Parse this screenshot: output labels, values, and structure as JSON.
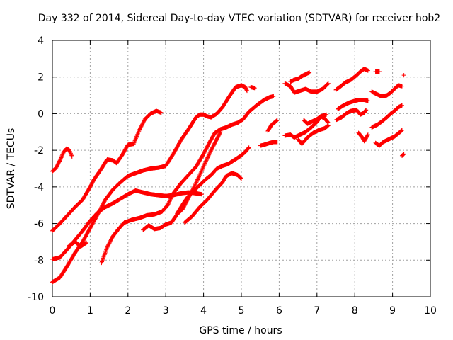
{
  "chart_data": {
    "type": "scatter",
    "title": "Day 332 of 2014, Sidereal Day-to-day VTEC variation (SDTVAR) for receiver hob2",
    "xlabel": "GPS time / hours",
    "ylabel": "SDTVAR / TECUs",
    "xlim": [
      0,
      10
    ],
    "ylim": [
      -10,
      4
    ],
    "xticks": [
      0,
      1,
      2,
      3,
      4,
      5,
      6,
      7,
      8,
      9,
      10
    ],
    "yticks": [
      -10,
      -8,
      -6,
      -4,
      -2,
      0,
      2,
      4
    ],
    "grid": true,
    "marker": "+",
    "color": "#ff0000",
    "series": [
      {
        "points": [
          [
            0.0,
            -3.15
          ],
          [
            0.1,
            -2.95
          ],
          [
            0.2,
            -2.55
          ],
          [
            0.3,
            -2.1
          ],
          [
            0.38,
            -1.9
          ],
          [
            0.45,
            -2.0
          ],
          [
            0.52,
            -2.35
          ]
        ]
      },
      {
        "points": [
          [
            0.0,
            -6.4
          ],
          [
            0.2,
            -6.0
          ],
          [
            0.4,
            -5.55
          ],
          [
            0.6,
            -5.1
          ],
          [
            0.8,
            -4.7
          ],
          [
            1.0,
            -4.0
          ],
          [
            1.1,
            -3.6
          ],
          [
            1.3,
            -3.0
          ],
          [
            1.45,
            -2.5
          ],
          [
            1.6,
            -2.55
          ],
          [
            1.7,
            -2.7
          ],
          [
            1.85,
            -2.25
          ],
          [
            2.0,
            -1.7
          ],
          [
            2.15,
            -1.65
          ],
          [
            2.3,
            -0.9
          ],
          [
            2.45,
            -0.3
          ],
          [
            2.6,
            0.0
          ],
          [
            2.75,
            0.15
          ],
          [
            2.88,
            0.05
          ]
        ]
      },
      {
        "points": [
          [
            0.0,
            -7.95
          ],
          [
            0.2,
            -7.85
          ],
          [
            0.4,
            -7.4
          ],
          [
            0.6,
            -6.9
          ],
          [
            0.8,
            -6.4
          ],
          [
            1.0,
            -5.85
          ],
          [
            1.2,
            -5.4
          ],
          [
            1.4,
            -5.1
          ],
          [
            1.6,
            -4.9
          ],
          [
            1.8,
            -4.65
          ],
          [
            2.0,
            -4.4
          ],
          [
            2.2,
            -4.2
          ],
          [
            2.4,
            -4.3
          ],
          [
            2.6,
            -4.4
          ],
          [
            2.8,
            -4.45
          ],
          [
            3.0,
            -4.5
          ],
          [
            3.2,
            -4.45
          ],
          [
            3.4,
            -4.35
          ],
          [
            3.6,
            -4.3
          ],
          [
            3.8,
            -4.35
          ],
          [
            3.95,
            -4.4
          ]
        ]
      },
      {
        "points": [
          [
            0.0,
            -9.2
          ],
          [
            0.2,
            -8.95
          ],
          [
            0.4,
            -8.3
          ],
          [
            0.6,
            -7.6
          ],
          [
            0.8,
            -7.0
          ],
          [
            1.0,
            -6.25
          ],
          [
            1.2,
            -5.5
          ],
          [
            1.4,
            -4.7
          ],
          [
            1.6,
            -4.15
          ],
          [
            1.8,
            -3.75
          ],
          [
            2.0,
            -3.4
          ],
          [
            2.2,
            -3.25
          ],
          [
            2.4,
            -3.1
          ],
          [
            2.6,
            -3.0
          ],
          [
            2.8,
            -2.95
          ],
          [
            3.0,
            -2.85
          ],
          [
            3.2,
            -2.2
          ],
          [
            3.4,
            -1.45
          ],
          [
            3.6,
            -0.85
          ],
          [
            3.8,
            -0.2
          ],
          [
            3.9,
            -0.05
          ],
          [
            4.0,
            -0.05
          ],
          [
            4.1,
            -0.15
          ],
          [
            4.2,
            -0.2
          ],
          [
            4.35,
            0.0
          ],
          [
            4.5,
            0.35
          ],
          [
            4.7,
            1.0
          ],
          [
            4.85,
            1.45
          ],
          [
            5.0,
            1.55
          ],
          [
            5.1,
            1.45
          ],
          [
            5.15,
            1.25
          ]
        ]
      },
      {
        "points": [
          [
            0.45,
            -7.2
          ],
          [
            0.6,
            -7.0
          ],
          [
            0.75,
            -7.25
          ],
          [
            0.9,
            -7.05
          ]
        ]
      },
      {
        "points": [
          [
            1.3,
            -8.15
          ],
          [
            1.45,
            -7.3
          ],
          [
            1.6,
            -6.7
          ],
          [
            1.75,
            -6.3
          ],
          [
            1.9,
            -5.95
          ],
          [
            2.1,
            -5.8
          ],
          [
            2.3,
            -5.7
          ],
          [
            2.5,
            -5.55
          ],
          [
            2.7,
            -5.5
          ],
          [
            2.9,
            -5.35
          ],
          [
            3.05,
            -5.0
          ],
          [
            3.2,
            -4.35
          ],
          [
            3.4,
            -3.8
          ],
          [
            3.6,
            -3.35
          ],
          [
            3.8,
            -2.9
          ],
          [
            4.0,
            -2.2
          ],
          [
            4.15,
            -1.6
          ],
          [
            4.3,
            -1.05
          ],
          [
            4.45,
            -0.85
          ],
          [
            4.6,
            -0.75
          ],
          [
            4.75,
            -0.6
          ],
          [
            4.9,
            -0.5
          ],
          [
            5.05,
            -0.3
          ],
          [
            5.2,
            0.1
          ],
          [
            5.4,
            0.45
          ],
          [
            5.6,
            0.75
          ],
          [
            5.75,
            0.9
          ],
          [
            5.85,
            0.95
          ]
        ]
      },
      {
        "points": [
          [
            2.4,
            -6.35
          ],
          [
            2.55,
            -6.1
          ],
          [
            2.7,
            -6.3
          ],
          [
            2.85,
            -6.25
          ],
          [
            3.0,
            -6.05
          ],
          [
            3.15,
            -5.95
          ],
          [
            3.3,
            -5.5
          ],
          [
            3.45,
            -5.2
          ],
          [
            3.6,
            -4.6
          ],
          [
            3.75,
            -4.0
          ],
          [
            3.9,
            -3.35
          ],
          [
            4.05,
            -2.65
          ],
          [
            4.2,
            -2.0
          ],
          [
            4.35,
            -1.4
          ],
          [
            4.45,
            -1.0
          ]
        ]
      },
      {
        "points": [
          [
            3.3,
            -5.45
          ],
          [
            3.45,
            -4.95
          ],
          [
            3.6,
            -4.5
          ],
          [
            3.75,
            -4.2
          ],
          [
            3.9,
            -3.9
          ],
          [
            4.05,
            -3.6
          ],
          [
            4.2,
            -3.35
          ],
          [
            4.35,
            -3.0
          ],
          [
            4.5,
            -2.85
          ],
          [
            4.65,
            -2.75
          ],
          [
            4.8,
            -2.55
          ],
          [
            4.95,
            -2.35
          ],
          [
            5.1,
            -2.1
          ],
          [
            5.2,
            -1.85
          ]
        ]
      },
      {
        "points": [
          [
            3.5,
            -5.95
          ],
          [
            3.7,
            -5.6
          ],
          [
            3.9,
            -5.1
          ],
          [
            4.1,
            -4.7
          ],
          [
            4.3,
            -4.2
          ],
          [
            4.5,
            -3.75
          ],
          [
            4.6,
            -3.4
          ],
          [
            4.75,
            -3.25
          ],
          [
            4.9,
            -3.35
          ],
          [
            5.0,
            -3.55
          ]
        ]
      },
      {
        "points": [
          [
            5.25,
            1.45
          ],
          [
            5.35,
            1.4
          ]
        ]
      },
      {
        "points": [
          [
            5.5,
            -1.75
          ],
          [
            5.6,
            -1.7
          ],
          [
            5.75,
            -1.6
          ],
          [
            5.85,
            -1.55
          ],
          [
            5.95,
            -1.55
          ]
        ]
      },
      {
        "points": [
          [
            5.7,
            -0.95
          ],
          [
            5.8,
            -0.6
          ],
          [
            5.9,
            -0.45
          ],
          [
            5.95,
            -0.35
          ]
        ]
      },
      {
        "points": [
          [
            6.15,
            1.65
          ],
          [
            6.3,
            1.5
          ],
          [
            6.4,
            1.15
          ],
          [
            6.55,
            1.25
          ],
          [
            6.7,
            1.35
          ],
          [
            6.85,
            1.2
          ],
          [
            7.0,
            1.2
          ],
          [
            7.15,
            1.35
          ],
          [
            7.3,
            1.65
          ]
        ]
      },
      {
        "points": [
          [
            6.3,
            1.75
          ],
          [
            6.4,
            1.85
          ],
          [
            6.5,
            1.9
          ],
          [
            6.6,
            2.05
          ],
          [
            6.7,
            2.15
          ],
          [
            6.8,
            2.25
          ]
        ]
      },
      {
        "points": [
          [
            6.15,
            -1.2
          ],
          [
            6.3,
            -1.15
          ],
          [
            6.4,
            -1.3
          ],
          [
            6.55,
            -1.15
          ],
          [
            6.7,
            -1.0
          ],
          [
            6.85,
            -0.75
          ],
          [
            7.0,
            -0.45
          ],
          [
            7.1,
            -0.15
          ],
          [
            7.25,
            -0.05
          ]
        ]
      },
      {
        "points": [
          [
            6.5,
            -1.4
          ],
          [
            6.6,
            -1.65
          ],
          [
            6.75,
            -1.3
          ],
          [
            6.9,
            -1.05
          ],
          [
            7.05,
            -0.9
          ],
          [
            7.2,
            -0.8
          ],
          [
            7.3,
            -0.65
          ]
        ]
      },
      {
        "points": [
          [
            6.65,
            -0.35
          ],
          [
            6.75,
            -0.55
          ],
          [
            6.9,
            -0.4
          ],
          [
            7.0,
            -0.3
          ],
          [
            7.1,
            -0.15
          ],
          [
            7.2,
            -0.25
          ],
          [
            7.3,
            -0.5
          ]
        ]
      },
      {
        "points": [
          [
            7.5,
            1.3
          ],
          [
            7.6,
            1.45
          ],
          [
            7.75,
            1.7
          ],
          [
            7.9,
            1.85
          ],
          [
            8.05,
            2.1
          ],
          [
            8.15,
            2.3
          ],
          [
            8.25,
            2.45
          ],
          [
            8.35,
            2.35
          ]
        ]
      },
      {
        "points": [
          [
            7.55,
            0.25
          ],
          [
            7.7,
            0.45
          ],
          [
            7.85,
            0.6
          ],
          [
            8.0,
            0.7
          ],
          [
            8.1,
            0.75
          ],
          [
            8.25,
            0.75
          ],
          [
            8.35,
            0.7
          ]
        ]
      },
      {
        "points": [
          [
            7.5,
            -0.35
          ],
          [
            7.65,
            -0.2
          ],
          [
            7.8,
            0.05
          ],
          [
            7.9,
            0.15
          ],
          [
            8.05,
            0.2
          ],
          [
            8.15,
            -0.05
          ],
          [
            8.25,
            0.05
          ],
          [
            8.3,
            0.2
          ]
        ]
      },
      {
        "points": [
          [
            8.1,
            -1.05
          ],
          [
            8.2,
            -1.3
          ],
          [
            8.25,
            -1.5
          ],
          [
            8.35,
            -1.15
          ]
        ]
      },
      {
        "points": [
          [
            8.55,
            2.3
          ],
          [
            8.65,
            2.3
          ]
        ]
      },
      {
        "points": [
          [
            8.45,
            1.2
          ],
          [
            8.55,
            1.1
          ],
          [
            8.7,
            0.95
          ],
          [
            8.85,
            1.0
          ],
          [
            8.95,
            1.15
          ],
          [
            9.05,
            1.35
          ],
          [
            9.15,
            1.55
          ],
          [
            9.25,
            1.5
          ]
        ]
      },
      {
        "points": [
          [
            8.45,
            -0.75
          ],
          [
            8.6,
            -0.6
          ],
          [
            8.7,
            -0.45
          ],
          [
            8.85,
            -0.2
          ],
          [
            8.95,
            0.0
          ],
          [
            9.05,
            0.15
          ],
          [
            9.15,
            0.35
          ],
          [
            9.25,
            0.45
          ]
        ]
      },
      {
        "points": [
          [
            8.55,
            -1.6
          ],
          [
            8.65,
            -1.75
          ],
          [
            8.75,
            -1.55
          ],
          [
            8.9,
            -1.4
          ],
          [
            9.05,
            -1.25
          ],
          [
            9.2,
            -1.0
          ],
          [
            9.25,
            -0.9
          ]
        ]
      },
      {
        "points": [
          [
            9.3,
            2.1
          ]
        ]
      },
      {
        "points": [
          [
            9.3,
            -2.2
          ],
          [
            9.25,
            -2.3
          ]
        ]
      }
    ]
  }
}
